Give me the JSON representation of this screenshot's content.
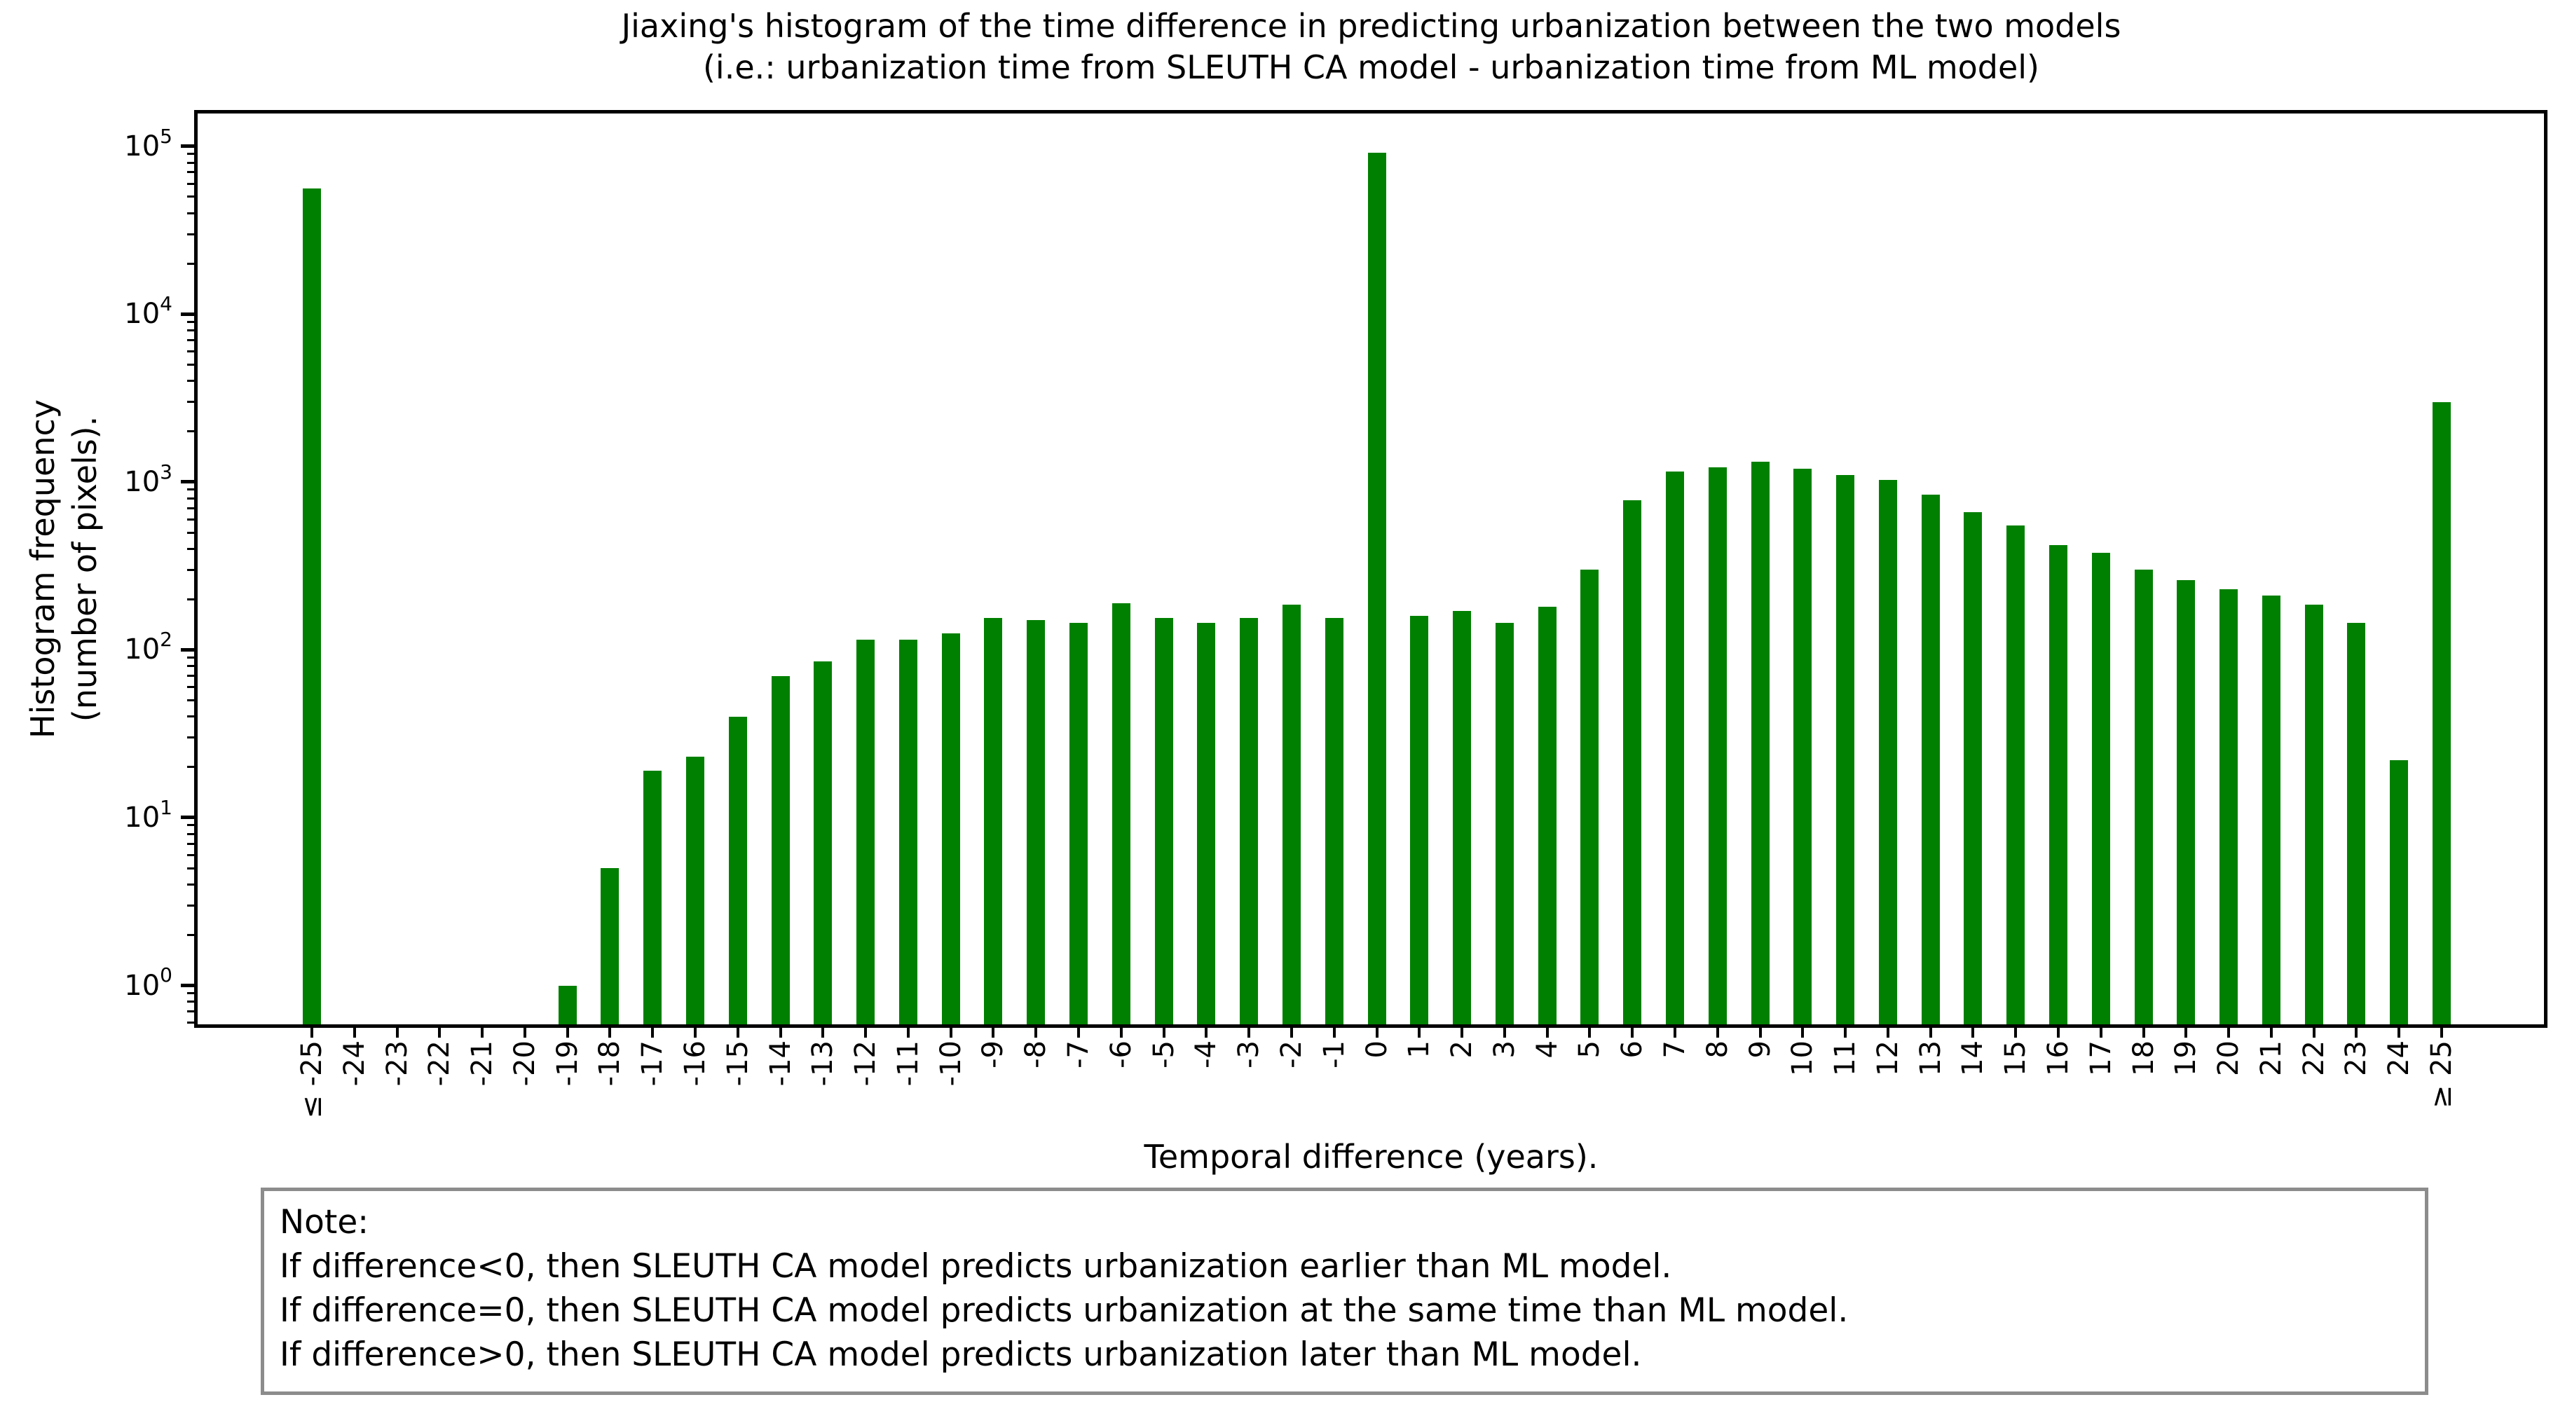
{
  "title": {
    "line1": "Jiaxing's histogram of the time difference in predicting urbanization between the two models",
    "line2": "(i.e.: urbanization time from SLEUTH CA model - urbanization time from ML model)"
  },
  "chart_data": {
    "type": "bar",
    "title": "Jiaxing's histogram of the time difference in predicting urbanization between the two models (i.e.: urbanization time from SLEUTH CA model - urbanization time from ML model)",
    "categories": [
      "≤ -25",
      "-24",
      "-23",
      "-22",
      "-21",
      "-20",
      "-19",
      "-18",
      "-17",
      "-16",
      "-15",
      "-14",
      "-13",
      "-12",
      "-11",
      "-10",
      "-9",
      "-8",
      "-7",
      "-6",
      "-5",
      "-4",
      "-3",
      "-2",
      "-1",
      "0",
      "1",
      "2",
      "3",
      "4",
      "5",
      "6",
      "7",
      "8",
      "9",
      "10",
      "11",
      "12",
      "13",
      "14",
      "15",
      "16",
      "17",
      "18",
      "19",
      "20",
      "21",
      "22",
      "23",
      "24",
      "≥ 25"
    ],
    "values": [
      56000,
      0,
      0,
      0,
      0,
      0,
      1,
      5,
      19,
      23,
      40,
      70,
      85,
      115,
      115,
      125,
      155,
      150,
      145,
      190,
      155,
      145,
      155,
      185,
      155,
      92000,
      160,
      170,
      145,
      180,
      300,
      780,
      1150,
      1220,
      1320,
      1200,
      1100,
      1030,
      840,
      660,
      550,
      420,
      380,
      300,
      260,
      230,
      210,
      185,
      145,
      22,
      3000
    ],
    "xlabel": "Temporal difference (years).",
    "ylabel_line1": "Histogram frequency",
    "ylabel_line2": "(number of pixels).",
    "yscale": "log",
    "ylim": [
      0.57,
      160000
    ],
    "grid": false,
    "legend": false,
    "bar_color": "#008000",
    "y_ticks": [
      {
        "base": "10",
        "exp": "0"
      },
      {
        "base": "10",
        "exp": "1"
      },
      {
        "base": "10",
        "exp": "2"
      },
      {
        "base": "10",
        "exp": "3"
      },
      {
        "base": "10",
        "exp": "4"
      },
      {
        "base": "10",
        "exp": "5"
      }
    ]
  },
  "note": {
    "heading": "Note:",
    "lines": [
      "If difference<0, then SLEUTH CA model predicts urbanization earlier than ML model.",
      "If difference=0, then SLEUTH CA model predicts urbanization at the same time than ML model.",
      "If difference>0, then SLEUTH CA model predicts urbanization later than ML model."
    ]
  }
}
